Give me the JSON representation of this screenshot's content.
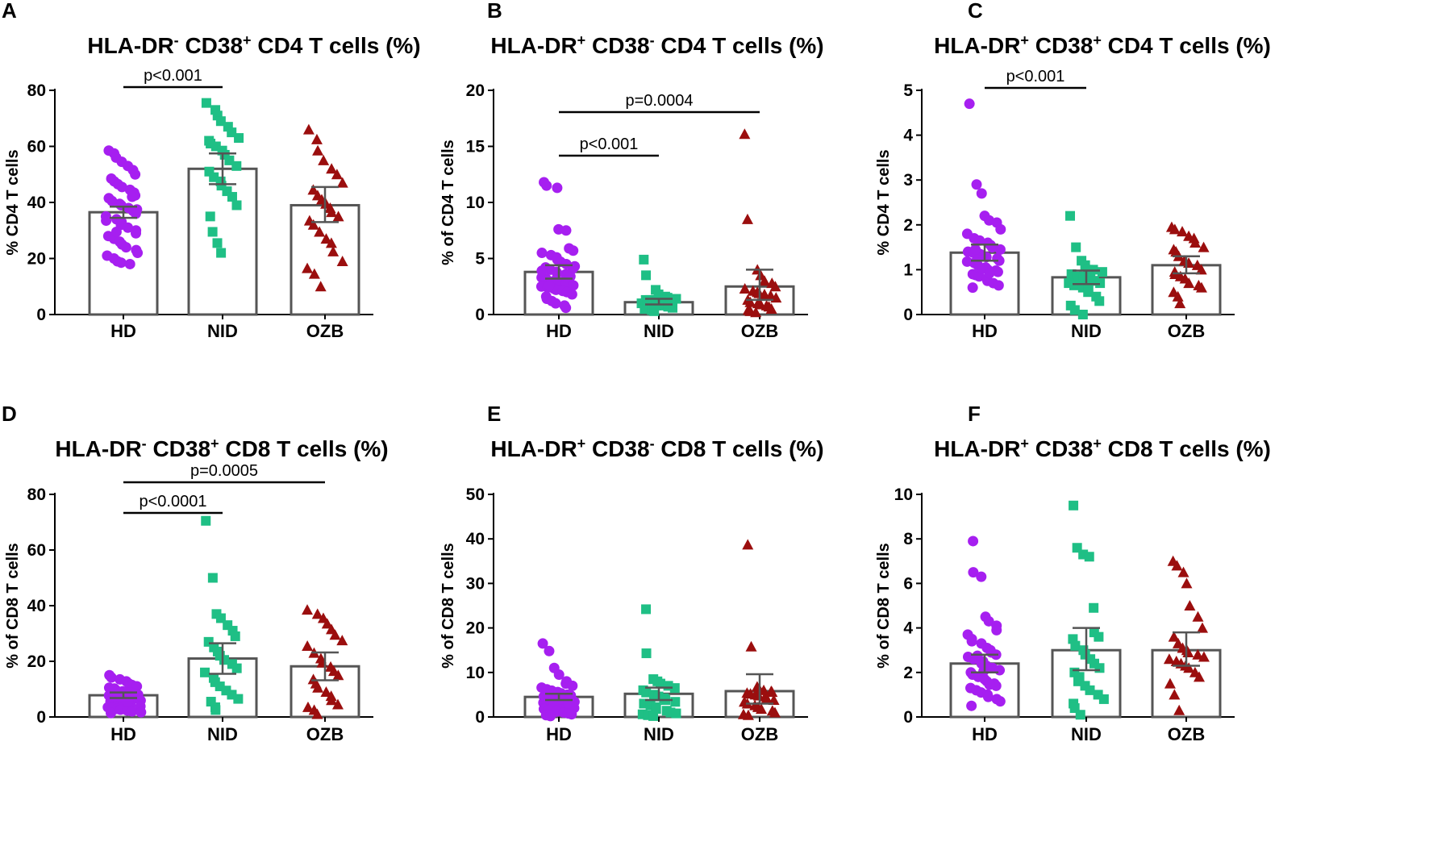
{
  "colors": {
    "HD": "#a61ff0",
    "NID": "#1fbf85",
    "OZB": "#9b0e0e",
    "bar_edge": "#555555",
    "axis": "#000000"
  },
  "chart_data": [
    {
      "panel": "A",
      "type": "bar",
      "title_parts": [
        [
          "HLA-DR",
          ""
        ],
        [
          "-",
          "sup"
        ],
        [
          " CD38",
          ""
        ],
        [
          "+",
          "sup"
        ],
        [
          " CD4 T cells (%)",
          ""
        ]
      ],
      "ylabel": "% CD4 T cells",
      "ylim": [
        0,
        80
      ],
      "yticks": [
        0,
        20,
        40,
        60,
        80
      ],
      "categories": [
        "HD",
        "NID",
        "OZB"
      ],
      "means": [
        36.5,
        52.0,
        39.0
      ],
      "errors": [
        [
          34.5,
          38.5
        ],
        [
          46.5,
          57.5
        ],
        [
          33.0,
          45.5
        ]
      ],
      "points": [
        [
          58.5,
          57.5,
          56.0,
          54.5,
          53.0,
          51.5,
          50.0,
          48.5,
          47.5,
          46.5,
          45.5,
          44.5,
          43.5,
          42.5,
          41.5,
          40.5,
          39.5,
          39.0,
          38.0,
          37.0,
          36.0,
          35.0,
          34.0,
          33.0,
          32.0,
          31.0,
          30.0,
          29.0,
          28.0,
          27.0,
          26.0,
          25.0,
          24.0,
          23.0,
          22.0,
          21.0,
          20.0,
          19.0,
          18.5,
          18.0,
          42.0,
          37.5,
          33.5,
          29.5
        ],
        [
          75.5,
          73.0,
          71.0,
          69.0,
          67.0,
          65.0,
          63.0,
          62.0,
          61.0,
          60.0,
          58.5,
          57.0,
          55.0,
          53.0,
          51.0,
          49.0,
          47.5,
          46.0,
          44.0,
          42.0,
          39.0,
          35.0,
          29.5,
          25.5,
          22.0
        ],
        [
          66.0,
          62.5,
          58.5,
          55.0,
          52.0,
          50.0,
          47.0,
          44.5,
          42.5,
          41.0,
          39.5,
          38.0,
          36.5,
          35.0,
          33.5,
          32.0,
          29.5,
          27.0,
          25.5,
          22.5,
          19.0,
          16.5,
          14.5,
          10.0
        ]
      ],
      "comparisons": [
        {
          "from": "HD",
          "to": "NID",
          "label": "p<0.001",
          "level": 0
        }
      ]
    },
    {
      "panel": "B",
      "type": "bar",
      "title_parts": [
        [
          "HLA-DR",
          ""
        ],
        [
          "+",
          "sup"
        ],
        [
          " CD38",
          ""
        ],
        [
          "-",
          "sup"
        ],
        [
          " CD4 T cells (%)",
          ""
        ]
      ],
      "ylabel": "% of CD4 T cells",
      "ylim": [
        0,
        20
      ],
      "yticks": [
        0,
        5,
        10,
        15,
        20
      ],
      "categories": [
        "HD",
        "NID",
        "OZB"
      ],
      "means": [
        3.8,
        1.1,
        2.5
      ],
      "errors": [
        [
          3.2,
          4.4
        ],
        [
          0.9,
          1.4
        ],
        [
          1.3,
          4.0
        ]
      ],
      "points": [
        [
          11.8,
          11.5,
          11.3,
          7.6,
          7.5,
          5.9,
          5.7,
          5.5,
          5.3,
          5.1,
          4.9,
          4.7,
          4.5,
          4.3,
          4.2,
          4.0,
          3.8,
          3.7,
          3.6,
          3.5,
          3.4,
          3.3,
          3.2,
          3.0,
          2.9,
          2.8,
          2.7,
          2.6,
          2.5,
          2.4,
          2.3,
          2.2,
          2.1,
          2.0,
          1.8,
          1.6,
          1.4,
          1.2,
          1.0,
          0.8,
          0.6,
          4.1,
          3.9,
          2.6
        ],
        [
          4.9,
          3.5,
          2.2,
          1.8,
          1.6,
          1.5,
          1.4,
          1.3,
          1.3,
          1.2,
          1.2,
          1.1,
          1.1,
          1.0,
          1.0,
          0.9,
          0.9,
          0.8,
          0.8,
          0.7,
          0.6,
          0.5,
          0.4,
          0.3
        ],
        [
          16.1,
          8.5,
          4.0,
          3.5,
          3.0,
          2.8,
          2.5,
          2.3,
          2.1,
          2.0,
          1.9,
          1.8,
          1.7,
          1.5,
          1.3,
          1.1,
          1.0,
          0.9,
          0.8,
          0.7,
          0.5,
          0.4,
          0.3,
          0.2
        ]
      ],
      "comparisons": [
        {
          "from": "HD",
          "to": "NID",
          "label": "p<0.001",
          "level": 0
        },
        {
          "from": "HD",
          "to": "OZB",
          "label": "p=0.0004",
          "level": 1
        }
      ]
    },
    {
      "panel": "C",
      "type": "bar",
      "title_parts": [
        [
          "HLA-DR",
          ""
        ],
        [
          "+",
          "sup"
        ],
        [
          " CD38",
          ""
        ],
        [
          "+",
          "sup"
        ],
        [
          " CD4 T cells (%)",
          ""
        ]
      ],
      "ylabel": "% CD4 T cells",
      "ylim": [
        0,
        5
      ],
      "yticks": [
        0,
        1,
        2,
        3,
        4,
        5
      ],
      "categories": [
        "HD",
        "NID",
        "OZB"
      ],
      "means": [
        1.38,
        0.83,
        1.1
      ],
      "errors": [
        [
          1.2,
          1.56
        ],
        [
          0.68,
          0.98
        ],
        [
          0.92,
          1.3
        ]
      ],
      "points": [
        [
          4.7,
          2.9,
          2.7,
          2.2,
          2.1,
          2.05,
          1.9,
          1.8,
          1.7,
          1.65,
          1.6,
          1.55,
          1.5,
          1.45,
          1.4,
          1.38,
          1.35,
          1.3,
          1.28,
          1.25,
          1.2,
          1.18,
          1.15,
          1.1,
          1.05,
          1.0,
          0.98,
          0.95,
          0.9,
          0.88,
          0.85,
          0.8,
          0.75,
          0.7,
          0.65,
          0.6,
          1.45,
          1.22,
          1.02,
          0.92
        ],
        [
          2.2,
          1.5,
          1.2,
          1.1,
          1.0,
          1.0,
          0.95,
          0.9,
          0.85,
          0.85,
          0.8,
          0.8,
          0.75,
          0.7,
          0.7,
          0.65,
          0.6,
          0.55,
          0.5,
          0.4,
          0.3,
          0.2,
          0.1,
          0.0
        ],
        [
          1.95,
          1.9,
          1.85,
          1.75,
          1.7,
          1.6,
          1.5,
          1.45,
          1.4,
          1.3,
          1.2,
          1.15,
          1.1,
          1.0,
          0.95,
          0.9,
          0.85,
          0.8,
          0.7,
          0.65,
          0.6,
          0.5,
          0.4,
          0.25
        ]
      ],
      "comparisons": [
        {
          "from": "HD",
          "to": "NID",
          "label": "p<0.001",
          "level": 0
        }
      ]
    },
    {
      "panel": "D",
      "type": "bar",
      "title_parts": [
        [
          "HLA-DR",
          ""
        ],
        [
          "-",
          "sup"
        ],
        [
          " CD38",
          ""
        ],
        [
          "+",
          "sup"
        ],
        [
          " CD8 T cells (%)",
          ""
        ]
      ],
      "ylabel": "% of CD8 T cells",
      "ylim": [
        0,
        80
      ],
      "yticks": [
        0,
        20,
        40,
        60,
        80
      ],
      "categories": [
        "HD",
        "NID",
        "OZB"
      ],
      "means": [
        7.8,
        21.0,
        18.2
      ],
      "errors": [
        [
          6.8,
          8.8
        ],
        [
          15.5,
          26.5
        ],
        [
          13.2,
          23.2
        ]
      ],
      "points": [
        [
          15.0,
          14.2,
          13.5,
          12.8,
          12.0,
          11.5,
          11.0,
          10.5,
          10.0,
          9.6,
          9.2,
          8.8,
          8.4,
          8.0,
          7.7,
          7.4,
          7.1,
          6.8,
          6.5,
          6.2,
          5.9,
          5.6,
          5.3,
          5.0,
          4.7,
          4.4,
          4.1,
          3.8,
          3.5,
          3.2,
          2.9,
          2.6,
          2.3,
          2.0,
          1.7,
          1.4,
          10.2,
          8.6,
          7.0,
          5.5
        ],
        [
          70.5,
          50.0,
          37.0,
          35.5,
          33.0,
          31.0,
          29.0,
          27.0,
          25.0,
          23.5,
          22.0,
          20.5,
          19.0,
          17.5,
          16.0,
          14.0,
          12.5,
          11.0,
          9.5,
          8.0,
          6.5,
          5.5,
          3.5,
          2.5
        ],
        [
          38.5,
          37.0,
          35.5,
          33.5,
          31.5,
          29.5,
          27.5,
          25.5,
          23.0,
          21.0,
          19.5,
          18.0,
          16.5,
          15.0,
          13.5,
          12.0,
          10.5,
          9.0,
          7.5,
          6.0,
          4.5,
          3.5,
          2.5,
          1.0
        ]
      ],
      "comparisons": [
        {
          "from": "HD",
          "to": "NID",
          "label": "p<0.0001",
          "level": 0
        },
        {
          "from": "HD",
          "to": "OZB",
          "label": "p=0.0005",
          "level": 1
        }
      ]
    },
    {
      "panel": "E",
      "type": "bar",
      "title_parts": [
        [
          "HLA-DR",
          ""
        ],
        [
          "+",
          "sup"
        ],
        [
          " CD38",
          ""
        ],
        [
          "-",
          "sup"
        ],
        [
          " CD8 T cells (%)",
          ""
        ]
      ],
      "ylabel": "% of CD8 T cells",
      "ylim": [
        0,
        50
      ],
      "yticks": [
        0,
        10,
        20,
        30,
        40,
        50
      ],
      "categories": [
        "HD",
        "NID",
        "OZB"
      ],
      "means": [
        4.5,
        5.2,
        5.8
      ],
      "errors": [
        [
          3.8,
          5.2
        ],
        [
          3.8,
          6.6
        ],
        [
          3.0,
          9.6
        ]
      ],
      "points": [
        [
          16.5,
          14.8,
          11.0,
          9.5,
          8.0,
          7.5,
          7.0,
          6.6,
          6.2,
          5.9,
          5.6,
          5.3,
          5.0,
          4.8,
          4.6,
          4.4,
          4.2,
          4.0,
          3.8,
          3.6,
          3.4,
          3.2,
          3.0,
          2.8,
          2.6,
          2.4,
          2.2,
          2.0,
          1.8,
          1.6,
          1.4,
          1.2,
          1.0,
          0.8,
          0.6,
          0.4,
          0.2,
          5.2,
          4.5,
          3.9,
          3.1
        ],
        [
          24.2,
          14.3,
          8.5,
          8.0,
          7.5,
          7.0,
          6.5,
          6.0,
          5.5,
          5.0,
          4.6,
          4.2,
          3.8,
          3.4,
          3.0,
          2.6,
          2.2,
          1.8,
          1.4,
          1.0,
          0.8,
          0.6,
          0.4,
          0.2
        ],
        [
          38.7,
          15.8,
          6.8,
          6.3,
          6.0,
          5.8,
          5.6,
          5.4,
          5.2,
          5.0,
          4.8,
          4.6,
          4.2,
          3.8,
          3.4,
          3.0,
          2.6,
          2.2,
          1.8,
          1.4,
          1.0,
          0.6,
          0.4
        ]
      ],
      "comparisons": []
    },
    {
      "panel": "F",
      "type": "bar",
      "title_parts": [
        [
          "HLA-DR",
          ""
        ],
        [
          "+",
          "sup"
        ],
        [
          " CD38",
          ""
        ],
        [
          "+",
          "sup"
        ],
        [
          " CD8 T cells (%)",
          ""
        ]
      ],
      "ylabel": "% of CD8 T cells",
      "ylim": [
        0,
        10
      ],
      "yticks": [
        0,
        2,
        4,
        6,
        8,
        10
      ],
      "categories": [
        "HD",
        "NID",
        "OZB"
      ],
      "means": [
        2.4,
        3.0,
        3.0
      ],
      "errors": [
        [
          2.0,
          2.8
        ],
        [
          2.1,
          4.0
        ],
        [
          2.3,
          3.8
        ]
      ],
      "points": [
        [
          7.9,
          6.5,
          6.3,
          4.5,
          4.3,
          4.1,
          3.9,
          3.7,
          3.5,
          3.3,
          3.1,
          3.0,
          2.9,
          2.8,
          2.7,
          2.6,
          2.5,
          2.4,
          2.3,
          2.2,
          2.1,
          2.0,
          1.9,
          1.8,
          1.7,
          1.6,
          1.5,
          1.4,
          1.3,
          1.2,
          1.1,
          1.0,
          0.9,
          0.8,
          0.7,
          0.5,
          3.4,
          2.75,
          2.05,
          1.45
        ],
        [
          9.5,
          7.6,
          7.3,
          7.2,
          4.9,
          3.8,
          3.6,
          3.5,
          3.2,
          3.0,
          2.8,
          2.6,
          2.4,
          2.2,
          2.0,
          1.8,
          1.6,
          1.4,
          1.2,
          1.0,
          0.8,
          0.6,
          0.4,
          0.1
        ],
        [
          7.0,
          6.8,
          6.5,
          6.0,
          5.0,
          4.5,
          4.0,
          3.6,
          3.3,
          3.1,
          3.0,
          2.9,
          2.8,
          2.7,
          2.6,
          2.5,
          2.4,
          2.3,
          2.2,
          2.0,
          1.8,
          1.5,
          1.0,
          0.3
        ]
      ],
      "comparisons": []
    }
  ]
}
